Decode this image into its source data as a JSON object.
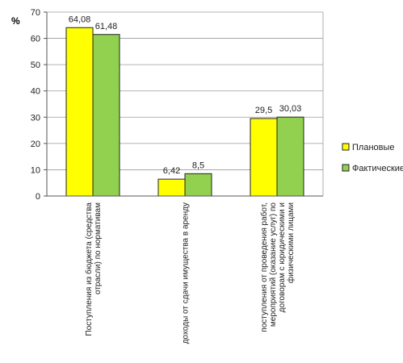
{
  "chart_data": {
    "type": "bar",
    "title": "",
    "xlabel": "",
    "ylabel": "%",
    "ylim": [
      0,
      70
    ],
    "yticks": [
      0,
      10,
      20,
      30,
      40,
      50,
      60,
      70
    ],
    "grid": true,
    "legend_position": "right",
    "categories": [
      [
        "Поступления из бюджета (средства",
        "отрасли) по нормативам"
      ],
      [
        "доходы от сдачи имущества в аренду"
      ],
      [
        "поступления от проведения работ,",
        "мероприятий (оказание услуг) по",
        "договорам с юридическими и",
        "физическими лицами"
      ]
    ],
    "series": [
      {
        "name": "Плановые",
        "color": "#ffff00",
        "values": [
          64.08,
          6.42,
          29.5
        ],
        "labels": [
          "64,08",
          "6,42",
          "29,5"
        ]
      },
      {
        "name": "Фактические",
        "color": "#92d050",
        "values": [
          61.48,
          8.5,
          30.03
        ],
        "labels": [
          "61,48",
          "8,5",
          "30,03"
        ]
      }
    ]
  }
}
